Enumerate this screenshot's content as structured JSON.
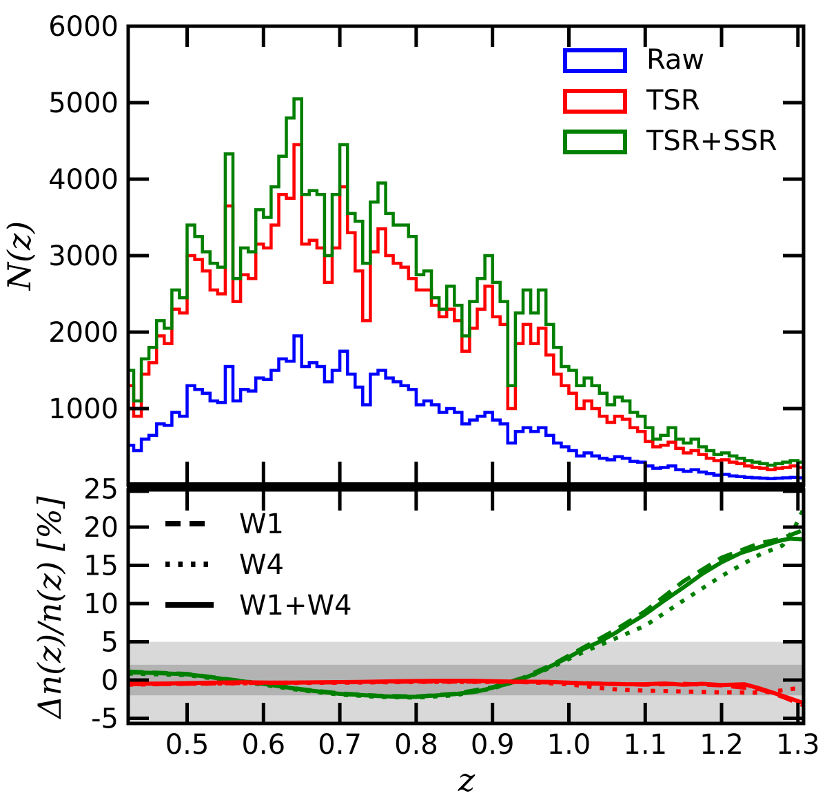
{
  "figure": {
    "description": "Two-panel redshift distribution figure",
    "background": "#ffffff"
  },
  "chart_data": [
    {
      "id": "nz_histogram",
      "type": "bar",
      "title": "",
      "xlabel": "",
      "ylabel": "N(z)",
      "xlim": [
        0.4228,
        1.3074
      ],
      "ylim": [
        0,
        6000
      ],
      "xticks": [
        0.5,
        0.6,
        0.7,
        0.8,
        0.9,
        1.0,
        1.1,
        1.2,
        1.3
      ],
      "yticks": [
        1000,
        2000,
        3000,
        4000,
        5000,
        6000
      ],
      "ytick_labels": [
        "1000",
        "2000",
        "3000",
        "4000",
        "5000",
        "6000"
      ],
      "grid": false,
      "legend_position": "upper right",
      "bin_start": 0.42,
      "bin_width": 0.01,
      "series": [
        {
          "name": "Raw",
          "color": "#0000ff",
          "values": [
            520,
            450,
            600,
            650,
            800,
            780,
            950,
            900,
            1300,
            1250,
            1200,
            1100,
            1080,
            1550,
            1100,
            1250,
            1230,
            1400,
            1380,
            1500,
            1650,
            1620,
            1950,
            1550,
            1600,
            1550,
            1350,
            1500,
            1750,
            1450,
            1280,
            1050,
            1450,
            1500,
            1400,
            1350,
            1300,
            1250,
            1050,
            1100,
            1050,
            950,
            1000,
            950,
            800,
            850,
            900,
            950,
            850,
            800,
            550,
            700,
            750,
            700,
            750,
            650,
            550,
            500,
            450,
            380,
            420,
            380,
            350,
            330,
            370,
            350,
            310,
            300,
            250,
            220,
            230,
            250,
            200,
            180,
            200,
            170,
            150,
            130,
            140,
            120,
            110,
            100,
            95,
            90,
            85,
            90,
            95,
            100,
            95
          ]
        },
        {
          "name": "TSR",
          "color": "#ff0000",
          "values": [
            1300,
            900,
            1450,
            1600,
            1950,
            1850,
            2300,
            2250,
            3000,
            2950,
            2800,
            2550,
            2500,
            3650,
            2400,
            2750,
            2700,
            3150,
            3100,
            3400,
            3800,
            3750,
            4450,
            3150,
            3200,
            3100,
            2650,
            3100,
            3900,
            3300,
            2800,
            2150,
            3050,
            3350,
            3000,
            2900,
            2850,
            2700,
            2550,
            2550,
            2350,
            2200,
            2300,
            2150,
            1750,
            2050,
            2300,
            2600,
            2200,
            2100,
            1000,
            1850,
            2100,
            1850,
            2050,
            1700,
            1450,
            1300,
            1200,
            1000,
            1100,
            1000,
            900,
            820,
            900,
            860,
            750,
            700,
            570,
            500,
            520,
            560,
            480,
            420,
            450,
            400,
            350,
            320,
            330,
            300,
            280,
            250,
            230,
            220,
            200,
            220,
            230,
            250,
            230
          ]
        },
        {
          "name": "TSR+SSR",
          "color": "#007f00",
          "values": [
            1500,
            1100,
            1650,
            1800,
            2150,
            2050,
            2550,
            2450,
            3400,
            3250,
            3050,
            2900,
            2850,
            4330,
            2700,
            3100,
            3050,
            3600,
            3500,
            3900,
            4300,
            4800,
            5050,
            3800,
            3850,
            3800,
            3000,
            3800,
            4450,
            3550,
            3450,
            2900,
            3700,
            3950,
            3550,
            3400,
            3400,
            3250,
            2750,
            2800,
            2450,
            2300,
            2600,
            2350,
            1950,
            2400,
            2700,
            3000,
            2650,
            2400,
            1300,
            2250,
            2550,
            2250,
            2550,
            2100,
            1800,
            1550,
            1500,
            1300,
            1400,
            1300,
            1200,
            1050,
            1150,
            1100,
            950,
            900,
            750,
            600,
            650,
            750,
            600,
            550,
            600,
            500,
            450,
            400,
            420,
            380,
            350,
            320,
            300,
            280,
            260,
            280,
            300,
            320,
            300
          ]
        }
      ],
      "legend_entries": [
        "Raw",
        "TSR",
        "TSR+SSR"
      ]
    },
    {
      "id": "ratio_panel",
      "type": "line",
      "title": "",
      "xlabel": "z",
      "ylabel": "Δn(z)/n(z) [%]",
      "xlim": [
        0.4228,
        1.3074
      ],
      "ylim": [
        -5.7,
        25
      ],
      "xticks": [
        0.5,
        0.6,
        0.7,
        0.8,
        0.9,
        1.0,
        1.1,
        1.2,
        1.3
      ],
      "xtick_labels": [
        "0.5",
        "0.6",
        "0.7",
        "0.8",
        "0.9",
        "1.0",
        "1.1",
        "1.2",
        "1.3"
      ],
      "yticks": [
        -5,
        0,
        5,
        10,
        15,
        20,
        25
      ],
      "ytick_labels": [
        "-5",
        "0",
        "5",
        "10",
        "15",
        "20",
        "25"
      ],
      "grid": false,
      "legend_position": "upper left",
      "bands": [
        {
          "name": "five-percent-band",
          "range": [
            -5,
            5
          ],
          "color": "#d9d9d9"
        },
        {
          "name": "two-percent-band",
          "range": [
            -2,
            2
          ],
          "color": "#b3b3b3"
        }
      ],
      "series": [
        {
          "name": "TSR+SSR W1",
          "color": "#007f00",
          "style": "dashed",
          "x": [
            0.423,
            0.45,
            0.5,
            0.55,
            0.6,
            0.65,
            0.7,
            0.75,
            0.8,
            0.85,
            0.9,
            0.94,
            0.98,
            1.02,
            1.06,
            1.1,
            1.15,
            1.2,
            1.25,
            1.275,
            1.307
          ],
          "y": [
            1.1,
            1.0,
            0.8,
            0.15,
            -0.5,
            -1.2,
            -1.75,
            -2.05,
            -2.15,
            -1.8,
            -0.95,
            0.3,
            2.1,
            4.3,
            6.5,
            9.0,
            12.9,
            16.0,
            17.9,
            18.4,
            19.6
          ]
        },
        {
          "name": "TSR+SSR W4",
          "color": "#007f00",
          "style": "dotted",
          "x": [
            0.423,
            0.5,
            0.55,
            0.6,
            0.65,
            0.7,
            0.75,
            0.8,
            0.85,
            0.9,
            0.94,
            0.98,
            1.02,
            1.06,
            1.1,
            1.15,
            1.2,
            1.25,
            1.28,
            1.295,
            1.307
          ],
          "y": [
            0.85,
            0.65,
            0.0,
            -0.6,
            -1.35,
            -1.9,
            -2.2,
            -2.3,
            -2.0,
            -1.1,
            0.1,
            1.8,
            3.7,
            5.4,
            7.1,
            10.4,
            13.6,
            16.4,
            17.6,
            19.8,
            22.3
          ]
        },
        {
          "name": "TSR+SSR W1+W4",
          "color": "#007f00",
          "style": "solid",
          "x": [
            0.423,
            0.45,
            0.5,
            0.525,
            0.55,
            0.6,
            0.65,
            0.7,
            0.75,
            0.78,
            0.8,
            0.85,
            0.88,
            0.9,
            0.92,
            0.94,
            0.96,
            0.98,
            1.0,
            1.02,
            1.04,
            1.06,
            1.08,
            1.1,
            1.125,
            1.15,
            1.175,
            1.2,
            1.225,
            1.25,
            1.275,
            1.29,
            1.307
          ],
          "y": [
            1.0,
            0.95,
            0.75,
            0.45,
            0.1,
            -0.5,
            -1.25,
            -1.8,
            -2.1,
            -2.2,
            -2.2,
            -1.85,
            -1.5,
            -1.0,
            -0.5,
            0.2,
            1.0,
            2.0,
            3.0,
            4.1,
            5.0,
            6.1,
            7.4,
            8.6,
            10.4,
            12.1,
            13.9,
            15.4,
            16.6,
            17.4,
            18.2,
            18.5,
            18.4
          ]
        },
        {
          "name": "TSR W1",
          "color": "#ff0000",
          "style": "dashed",
          "x": [
            0.423,
            0.5,
            0.6,
            0.7,
            0.8,
            0.9,
            1.0,
            1.05,
            1.1,
            1.15,
            1.2,
            1.25,
            1.28,
            1.307
          ],
          "y": [
            -0.55,
            -0.5,
            -0.35,
            -0.3,
            -0.2,
            -0.2,
            -0.35,
            -0.5,
            -0.6,
            -0.5,
            -0.7,
            -1.2,
            -2.2,
            -3.3
          ]
        },
        {
          "name": "TSR W4",
          "color": "#ff0000",
          "style": "dotted",
          "x": [
            0.423,
            0.5,
            0.6,
            0.7,
            0.8,
            0.9,
            0.95,
            1.0,
            1.05,
            1.1,
            1.15,
            1.2,
            1.25,
            1.28,
            1.307
          ],
          "y": [
            -0.6,
            -0.5,
            -0.4,
            -0.35,
            -0.25,
            -0.25,
            -0.3,
            -0.55,
            -1.15,
            -1.4,
            -1.5,
            -1.6,
            -1.65,
            -1.35,
            -0.95
          ]
        },
        {
          "name": "TSR W1+W4",
          "color": "#ff0000",
          "style": "solid",
          "x": [
            0.423,
            0.475,
            0.525,
            0.575,
            0.625,
            0.675,
            0.725,
            0.775,
            0.825,
            0.875,
            0.925,
            0.975,
            1.025,
            1.075,
            1.1,
            1.125,
            1.15,
            1.175,
            1.2,
            1.23,
            1.25,
            1.275,
            1.307
          ],
          "y": [
            -0.5,
            -0.45,
            -0.35,
            -0.3,
            -0.35,
            -0.3,
            -0.25,
            -0.15,
            -0.1,
            -0.1,
            -0.2,
            -0.25,
            -0.45,
            -0.55,
            -0.55,
            -0.45,
            -0.6,
            -0.5,
            -0.65,
            -0.55,
            -1.1,
            -1.9,
            -3.0
          ]
        }
      ],
      "legend_entries": [
        {
          "label": "W1",
          "style": "dashed",
          "color": "#000000"
        },
        {
          "label": "W4",
          "style": "dotted",
          "color": "#000000"
        },
        {
          "label": "W1+W4",
          "style": "solid",
          "color": "#000000"
        }
      ]
    }
  ]
}
